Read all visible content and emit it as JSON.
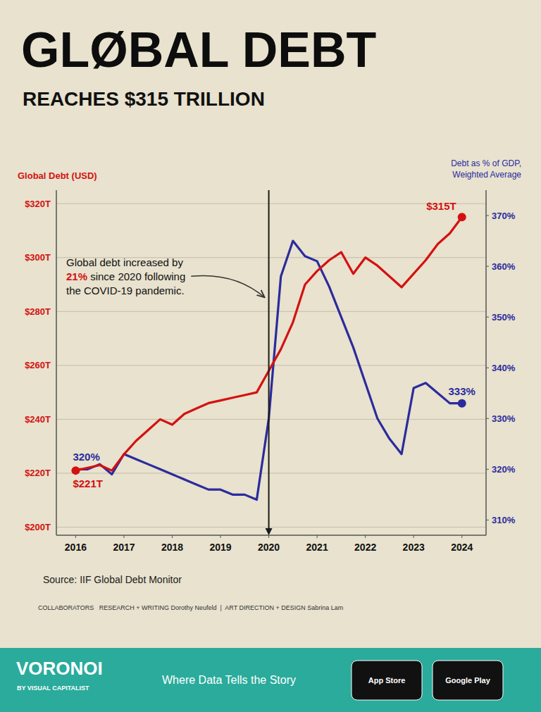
{
  "background": "#e8e2ce",
  "chart_data": {
    "type": "line",
    "title": "GLØBAL DEBT",
    "subtitle": "REACHES $315 TRILLION",
    "ylabel": "Global Debt (USD)",
    "y2label": "Debt as % of GDP,\nWeighted Average",
    "x": [
      2016.0,
      2016.25,
      2016.5,
      2016.75,
      2017.0,
      2017.25,
      2017.5,
      2017.75,
      2018.0,
      2018.25,
      2018.5,
      2018.75,
      2019.0,
      2019.25,
      2019.5,
      2019.75,
      2020.0,
      2020.25,
      2020.5,
      2020.75,
      2021.0,
      2021.25,
      2021.5,
      2021.75,
      2022.0,
      2022.25,
      2022.5,
      2022.75,
      2023.0,
      2023.25,
      2023.5,
      2023.75,
      2024.0
    ],
    "xlim": [
      2015.6,
      2024.5
    ],
    "xticks": [
      2016,
      2017,
      2018,
      2019,
      2020,
      2021,
      2022,
      2023,
      2024
    ],
    "ylim": [
      197,
      325
    ],
    "yticks": [
      {
        "value": 200,
        "label": "$200T"
      },
      {
        "value": 220,
        "label": "$220T"
      },
      {
        "value": 240,
        "label": "$240T"
      },
      {
        "value": 260,
        "label": "$260T"
      },
      {
        "value": 280,
        "label": "$280T"
      },
      {
        "value": 300,
        "label": "$300T"
      },
      {
        "value": 320,
        "label": "$320T"
      }
    ],
    "y2lim": [
      307,
      375
    ],
    "y2ticks": [
      {
        "value": 310,
        "label": "310%"
      },
      {
        "value": 320,
        "label": "320%"
      },
      {
        "value": 330,
        "label": "330%"
      },
      {
        "value": 340,
        "label": "340%"
      },
      {
        "value": 350,
        "label": "350%"
      },
      {
        "value": 360,
        "label": "360%"
      },
      {
        "value": 370,
        "label": "370%"
      }
    ],
    "grid": true,
    "series": [
      {
        "color": "#d41111",
        "values": [
          221,
          222,
          223,
          221,
          227,
          232,
          236,
          240,
          238,
          242,
          244,
          246,
          247,
          248,
          249,
          250,
          258,
          266,
          276,
          290,
          295,
          299,
          302,
          294,
          300,
          297,
          293,
          289,
          294,
          299,
          305,
          309,
          315
        ],
        "data_labels": true,
        "value_labels": [
          "$221T",
          null,
          null,
          null,
          null,
          null,
          null,
          null,
          null,
          null,
          null,
          null,
          null,
          null,
          null,
          null,
          null,
          null,
          null,
          null,
          null,
          null,
          null,
          null,
          null,
          null,
          null,
          null,
          null,
          null,
          null,
          null,
          "$315T"
        ]
      },
      {
        "color": "#2b2b9e",
        "axis": "y2",
        "values": [
          320,
          320,
          321,
          319,
          323,
          322,
          321,
          320,
          319,
          318,
          317,
          316,
          316,
          315,
          315,
          314,
          330,
          358,
          365,
          362,
          361,
          356,
          350,
          344,
          337,
          330,
          326,
          323,
          336,
          337,
          335,
          333,
          333
        ],
        "data_labels": true,
        "value_labels": [
          "320%",
          null,
          null,
          null,
          null,
          null,
          null,
          null,
          null,
          null,
          null,
          null,
          null,
          null,
          null,
          null,
          null,
          null,
          null,
          null,
          null,
          null,
          null,
          null,
          null,
          null,
          null,
          null,
          null,
          null,
          null,
          null,
          "333%"
        ]
      }
    ],
    "annotations": [
      {
        "text": "Global debt increased by"
      },
      {
        "text": "21%",
        "color": "#d41111"
      },
      {
        "text": " since 2020 following"
      },
      {
        "text": "the COVID-19 pandemic."
      },
      {
        "type": "vline",
        "x": 2020
      }
    ]
  },
  "source": "Source: IIF Global Debt Monitor",
  "credits": "COLLABORATORS   RESEARCH + WRITING Dorothy Neufeld  |  ART DIRECTION + DESIGN Sabrina Lam",
  "footer": {
    "color": "#2aab9c",
    "brand": "VORONOI",
    "byline": "BY VISUAL CAPITALIST",
    "tagline": "Where Data Tells the Story",
    "buttons": [
      "App Store",
      "Google Play"
    ]
  }
}
